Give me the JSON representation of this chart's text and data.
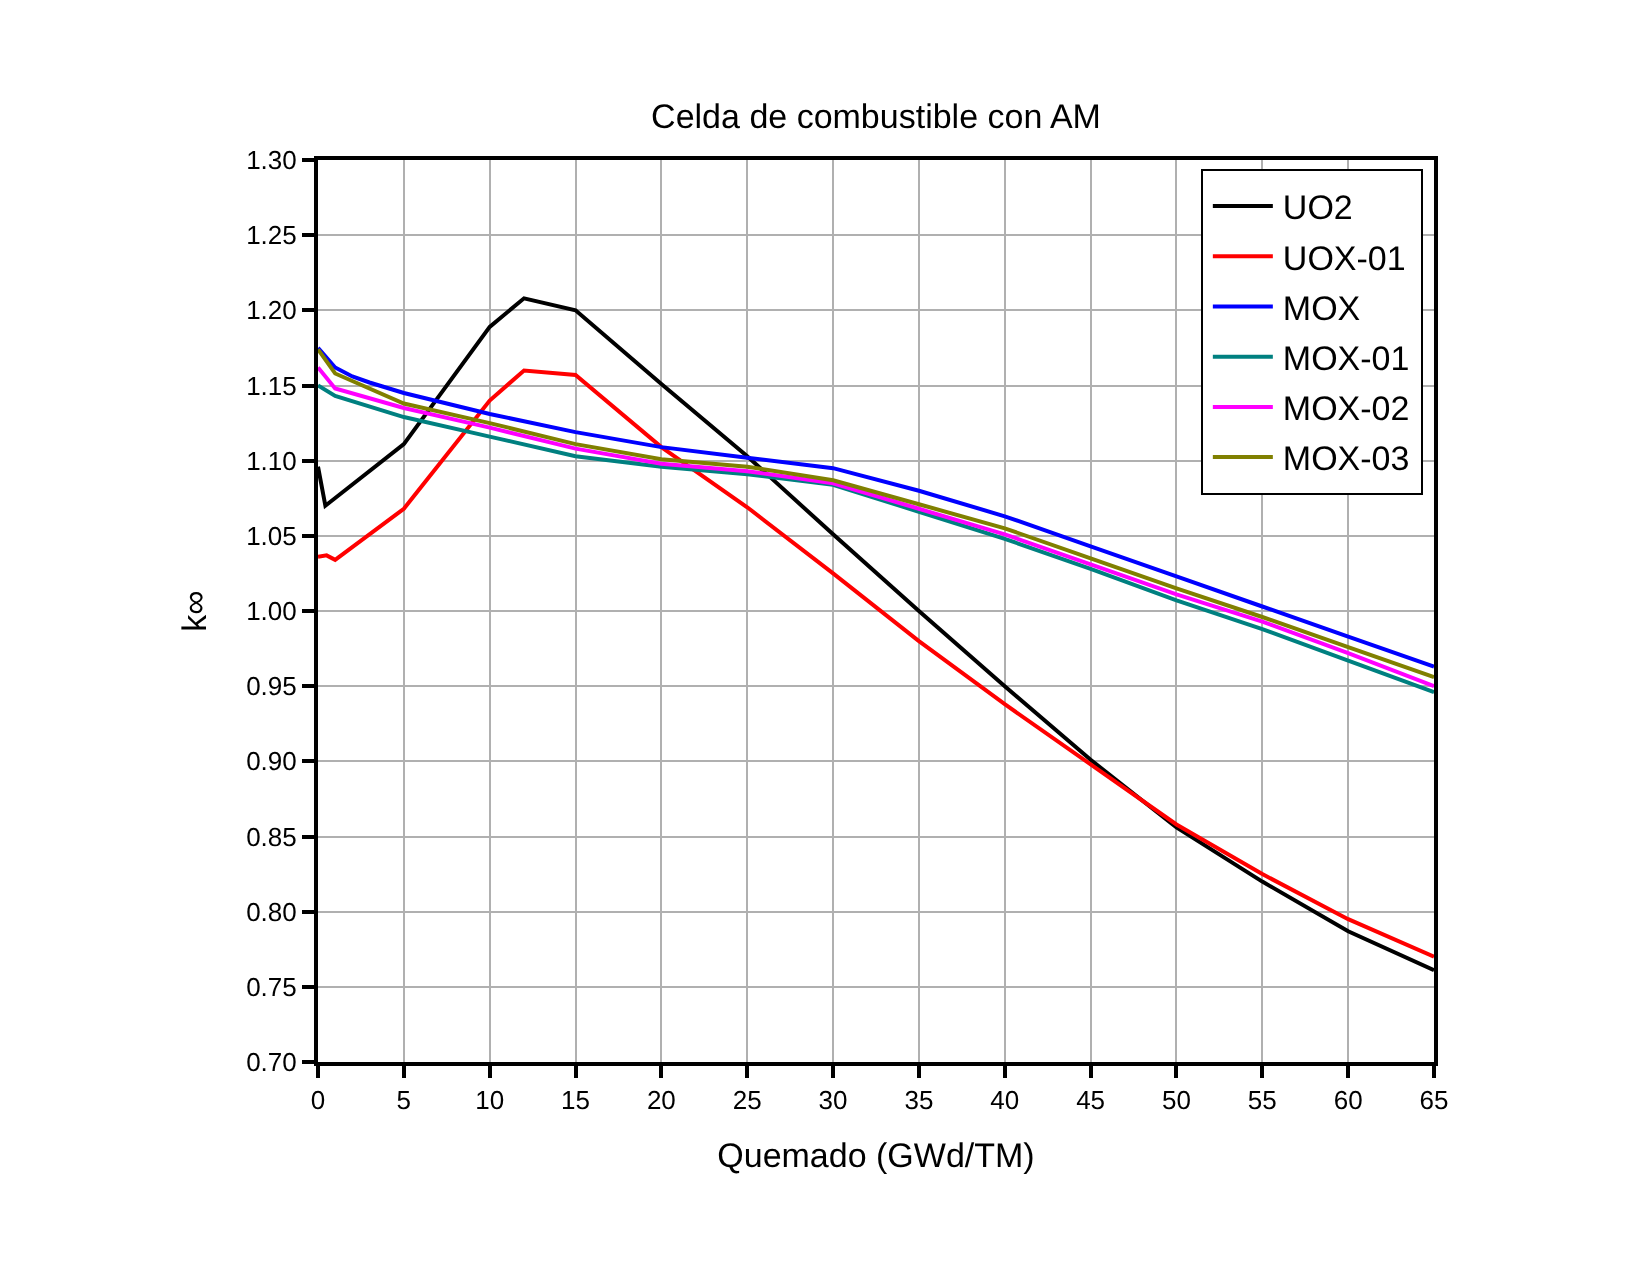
{
  "chart_data": {
    "type": "line",
    "title": "Celda de combustible con AM",
    "xlabel": "Quemado (GWd/TM)",
    "ylabel": "k∞",
    "xlim": [
      0,
      65
    ],
    "xticks": [
      0,
      5,
      10,
      15,
      20,
      25,
      30,
      35,
      40,
      45,
      50,
      55,
      60,
      65
    ],
    "ylim": [
      0.7,
      1.3
    ],
    "yticks": [
      {
        "value": 0.7,
        "label": "0.70"
      },
      {
        "value": 0.75,
        "label": "0.75"
      },
      {
        "value": 0.8,
        "label": "0.80"
      },
      {
        "value": 0.85,
        "label": "0.85"
      },
      {
        "value": 0.9,
        "label": "0.90"
      },
      {
        "value": 0.95,
        "label": "0.95"
      },
      {
        "value": 1.0,
        "label": "1.00"
      },
      {
        "value": 1.05,
        "label": "1.05"
      },
      {
        "value": 1.1,
        "label": "1.10"
      },
      {
        "value": 1.15,
        "label": "1.15"
      },
      {
        "value": 1.2,
        "label": "1.20"
      },
      {
        "value": 1.25,
        "label": "1.25"
      },
      {
        "value": 1.3,
        "label": "1.30"
      }
    ],
    "grid": true,
    "legend": "top right",
    "marker": "none",
    "line_style": "solid",
    "series": [
      {
        "name": "UO2",
        "color": "#000000",
        "x": [
          0,
          0.43,
          5,
          10,
          12,
          15,
          20,
          25,
          30,
          35,
          40,
          45,
          50,
          55,
          60,
          65
        ],
        "values": [
          1.096,
          1.07,
          1.111,
          1.189,
          1.208,
          1.2,
          1.151,
          1.103,
          1.051,
          1.0,
          0.95,
          0.901,
          0.856,
          0.82,
          0.787,
          0.761
        ]
      },
      {
        "name": "UOX-01",
        "color": "#ff0000",
        "x": [
          0,
          0.5,
          1,
          5,
          10,
          12,
          15,
          20,
          25,
          30,
          35,
          40,
          45,
          50,
          55,
          60,
          65
        ],
        "values": [
          1.036,
          1.037,
          1.034,
          1.068,
          1.14,
          1.16,
          1.157,
          1.109,
          1.069,
          1.025,
          0.98,
          0.938,
          0.898,
          0.858,
          0.825,
          0.795,
          0.77
        ]
      },
      {
        "name": "MOX",
        "color": "#0000ff",
        "x": [
          0,
          1,
          2,
          3,
          5,
          10,
          15,
          20,
          25,
          30,
          35,
          40,
          45,
          50,
          55,
          60,
          65
        ],
        "values": [
          1.175,
          1.162,
          1.156,
          1.152,
          1.145,
          1.131,
          1.119,
          1.109,
          1.102,
          1.095,
          1.08,
          1.063,
          1.043,
          1.023,
          1.003,
          0.983,
          0.963
        ]
      },
      {
        "name": "MOX-01",
        "color": "#008080",
        "x": [
          0,
          1,
          5,
          10,
          15,
          20,
          25,
          30,
          35,
          40,
          45,
          50,
          55,
          60,
          65
        ],
        "values": [
          1.15,
          1.143,
          1.129,
          1.116,
          1.103,
          1.096,
          1.091,
          1.084,
          1.066,
          1.048,
          1.028,
          1.007,
          0.988,
          0.967,
          0.946
        ]
      },
      {
        "name": "MOX-02",
        "color": "#ff00ff",
        "x": [
          0,
          1,
          5,
          10,
          15,
          20,
          25,
          30,
          35,
          40,
          45,
          50,
          55,
          60,
          65
        ],
        "values": [
          1.162,
          1.148,
          1.135,
          1.122,
          1.108,
          1.098,
          1.093,
          1.085,
          1.068,
          1.051,
          1.031,
          1.011,
          0.993,
          0.972,
          0.95
        ]
      },
      {
        "name": "MOX-03",
        "color": "#808000",
        "x": [
          0,
          1,
          5,
          10,
          15,
          20,
          25,
          30,
          35,
          40,
          45,
          50,
          55,
          60,
          65
        ],
        "values": [
          1.174,
          1.158,
          1.138,
          1.125,
          1.111,
          1.101,
          1.096,
          1.087,
          1.071,
          1.055,
          1.035,
          1.015,
          0.996,
          0.976,
          0.956
        ]
      }
    ]
  }
}
